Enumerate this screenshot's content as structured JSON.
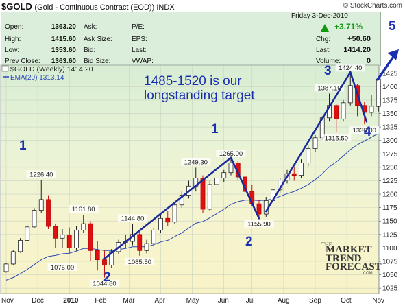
{
  "header": {
    "symbol": "$GOLD",
    "subtitle": "(Gold - Continuous Contract (EOD)) INDX",
    "brand": "© StockCharts.com"
  },
  "stats": {
    "left": [
      {
        "label": "Open:",
        "value": "1363.20"
      },
      {
        "label": "High:",
        "value": "1415.60"
      },
      {
        "label": "Low:",
        "value": "1353.60"
      },
      {
        "label": "Prev Close:",
        "value": "1363.60"
      }
    ],
    "mid": [
      "Ask:",
      "Ask Size:",
      "Bid:",
      "Bid Size:"
    ],
    "mid2": [
      "P/E:",
      "EPS:",
      "Last:",
      "VWAP:"
    ],
    "date": "Friday   3-Dec-2010",
    "change_pct": "+3.71%",
    "chg_label": "Chg:",
    "chg_value": "+50.60",
    "last_label": "Last:",
    "last_value": "1414.20",
    "volume_label": "Volume:",
    "volume_value": "0"
  },
  "legend": {
    "series1": "$GOLD (Weekly) 1414.20",
    "series2": "EMA(20) 1313.14"
  },
  "annotation": {
    "line1": "1485-1520 is our",
    "line2": "longstanding target"
  },
  "wave_labels": [
    "1",
    "2",
    "1",
    "2",
    "3",
    "4",
    "5"
  ],
  "logo": {
    "l1": "THE",
    "l2": "MARKET",
    "l3": "TREND",
    "l4": "FORECAST",
    "l5": ".COM"
  },
  "colors": {
    "up": "#ffffff",
    "down": "#dd1111",
    "ema": "#1e3ea8",
    "trend": "#1a2a9a",
    "accent": "#119911"
  },
  "chart_data": {
    "type": "candlestick",
    "title": "$GOLD (Gold - Continuous Contract (EOD)) INDX",
    "y_ticks": [
      1025,
      1050,
      1075,
      1100,
      1125,
      1150,
      1175,
      1200,
      1225,
      1250,
      1275,
      1300,
      1325,
      1350,
      1375,
      1400,
      1425
    ],
    "ylim": [
      1015,
      1440
    ],
    "x_labels": [
      "Nov",
      "Dec",
      "2010",
      "Feb",
      "Mar",
      "Apr",
      "May",
      "Jun",
      "Jul",
      "Aug",
      "Sep",
      "Oct",
      "Nov"
    ],
    "x_label_weeks": [
      0,
      4.5,
      9,
      13.5,
      17.5,
      22,
      26.5,
      31,
      35,
      39.5,
      44,
      48.5,
      53
    ],
    "grid": true,
    "candles": [
      [
        1056,
        1072,
        1054,
        1070
      ],
      [
        1070,
        1096,
        1068,
        1093
      ],
      [
        1093,
        1118,
        1091,
        1114
      ],
      [
        1114,
        1142,
        1112,
        1139
      ],
      [
        1139,
        1174,
        1137,
        1170
      ],
      [
        1170,
        1226.4,
        1165,
        1190
      ],
      [
        1190,
        1198,
        1135,
        1140
      ],
      [
        1140,
        1145,
        1100,
        1118
      ],
      [
        1118,
        1135,
        1100,
        1124
      ],
      [
        1124,
        1138,
        1090,
        1100
      ],
      [
        1100,
        1140,
        1095,
        1133
      ],
      [
        1133,
        1161.8,
        1128,
        1145
      ],
      [
        1145,
        1150,
        1075,
        1095
      ],
      [
        1095,
        1112,
        1058,
        1078
      ],
      [
        1078,
        1095,
        1044.8,
        1068
      ],
      [
        1068,
        1098,
        1063,
        1093
      ],
      [
        1093,
        1115,
        1088,
        1110
      ],
      [
        1110,
        1125,
        1100,
        1112
      ],
      [
        1112,
        1144.8,
        1105,
        1125
      ],
      [
        1125,
        1130,
        1085.5,
        1095
      ],
      [
        1095,
        1115,
        1090,
        1108
      ],
      [
        1108,
        1138,
        1103,
        1133
      ],
      [
        1133,
        1162,
        1128,
        1155
      ],
      [
        1155,
        1168,
        1140,
        1148
      ],
      [
        1148,
        1185,
        1145,
        1180
      ],
      [
        1180,
        1205,
        1175,
        1198
      ],
      [
        1198,
        1225,
        1192,
        1215
      ],
      [
        1215,
        1249.3,
        1205,
        1230
      ],
      [
        1230,
        1235,
        1165,
        1172
      ],
      [
        1172,
        1225,
        1168,
        1218
      ],
      [
        1218,
        1240,
        1212,
        1230
      ],
      [
        1230,
        1245,
        1222,
        1240
      ],
      [
        1240,
        1265,
        1235,
        1258
      ],
      [
        1258,
        1262,
        1225,
        1232
      ],
      [
        1232,
        1240,
        1195,
        1205
      ],
      [
        1205,
        1218,
        1178,
        1182
      ],
      [
        1182,
        1190,
        1155.9,
        1163
      ],
      [
        1163,
        1195,
        1158,
        1188
      ],
      [
        1188,
        1215,
        1183,
        1208
      ],
      [
        1208,
        1230,
        1203,
        1226
      ],
      [
        1226,
        1245,
        1220,
        1238
      ],
      [
        1238,
        1250,
        1225,
        1235
      ],
      [
        1235,
        1265,
        1230,
        1258
      ],
      [
        1258,
        1290,
        1252,
        1285
      ],
      [
        1285,
        1310,
        1278,
        1305
      ],
      [
        1305,
        1345,
        1300,
        1342
      ],
      [
        1342,
        1387.1,
        1335,
        1365
      ],
      [
        1365,
        1368,
        1315.5,
        1340
      ],
      [
        1340,
        1375,
        1335,
        1370
      ],
      [
        1370,
        1424.4,
        1365,
        1402
      ],
      [
        1402,
        1405,
        1345,
        1365
      ],
      [
        1365,
        1372,
        1330,
        1352
      ],
      [
        1352,
        1385,
        1345,
        1363.6
      ],
      [
        1363.2,
        1415.6,
        1353.6,
        1414.2
      ]
    ],
    "ema": [
      1040,
      1045,
      1052,
      1060,
      1069,
      1078,
      1084,
      1086,
      1089,
      1090,
      1094,
      1099,
      1099,
      1097,
      1095,
      1095,
      1097,
      1099,
      1102,
      1102,
      1102,
      1106,
      1111,
      1114,
      1121,
      1128,
      1137,
      1146,
      1149,
      1156,
      1164,
      1172,
      1181,
      1186,
      1189,
      1189,
      1188,
      1189,
      1191,
      1196,
      1201,
      1205,
      1211,
      1218,
      1227,
      1238,
      1251,
      1260,
      1271,
      1283,
      1292,
      1299,
      1306,
      1313.14
    ],
    "price_labels": [
      {
        "week": 5,
        "value": 1226.4,
        "text": "1226.40"
      },
      {
        "week": 11,
        "value": 1161.8,
        "text": "1161.80"
      },
      {
        "week": 18,
        "value": 1144.8,
        "text": "1144.80"
      },
      {
        "week": 27,
        "value": 1249.3,
        "text": "1249.30"
      },
      {
        "week": 32,
        "value": 1265.0,
        "text": "1265.00"
      },
      {
        "week": 46,
        "value": 1387.1,
        "text": "1387.10"
      },
      {
        "week": 49,
        "value": 1424.4,
        "text": "1424.40"
      },
      {
        "week": 8,
        "value": 1075.0,
        "text": "1075.00"
      },
      {
        "week": 14,
        "value": 1044.8,
        "text": "1044.80"
      },
      {
        "week": 19,
        "value": 1085.5,
        "text": "1085.50"
      },
      {
        "week": 36,
        "value": 1155.9,
        "text": "1155.90"
      },
      {
        "week": 47,
        "value": 1315.5,
        "text": "1315.50"
      },
      {
        "week": 51,
        "value": 1330.0,
        "text": "1330.00"
      }
    ],
    "trend_lines": [
      [
        [
          14,
          1080
        ],
        [
          32,
          1268
        ]
      ],
      [
        [
          32,
          1268
        ],
        [
          36,
          1155
        ]
      ],
      [
        [
          37,
          1168
        ],
        [
          49,
          1427
        ]
      ],
      [
        [
          49,
          1427
        ],
        [
          51.3,
          1335
        ]
      ]
    ]
  }
}
